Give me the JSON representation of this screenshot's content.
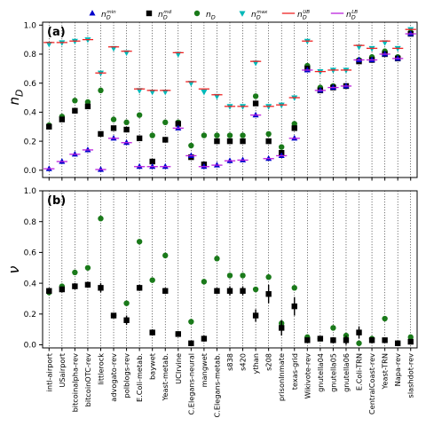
{
  "legend": [
    {
      "key": "nmin",
      "label": "n_D^min",
      "marker": "triangle-up",
      "color": "#0000cc"
    },
    {
      "key": "nmd",
      "label": "n_D^md",
      "marker": "square",
      "color": "#000000"
    },
    {
      "key": "nD",
      "label": "n_D",
      "marker": "circle",
      "color": "#1a7a1a"
    },
    {
      "key": "nmax",
      "label": "n_D^max",
      "marker": "triangle-down",
      "color": "#00b8b8"
    },
    {
      "key": "nUB",
      "label": "n_D^UB",
      "marker": "hline",
      "color": "#ee2222"
    },
    {
      "key": "nLB",
      "label": "n_D^LB",
      "marker": "hline",
      "color": "#bb22dd"
    }
  ],
  "chart_data": [
    {
      "type": "scatter",
      "panel": "(a)",
      "ylabel": "n_D",
      "ylim": [
        -0.05,
        1.02
      ],
      "yticks": [
        "0.0",
        "0.2",
        "0.4",
        "0.6",
        "0.8",
        "1.0"
      ],
      "categories": [
        "intl-airport",
        "USairport",
        "bitcoinalpha-rev",
        "bitcoinOTC-rev",
        "littlerock",
        "advogato-rev",
        "polblogs-rev",
        "E.Coli-metab.",
        "baywet",
        "Yeast-metab.",
        "UCIrvine",
        "C.Elegans-neural",
        "mangwet",
        "C.Elegans-metab.",
        "s838",
        "s420",
        "ythan",
        "s208",
        "prisonInmate",
        "texas-grid",
        "Wikivote-rev",
        "gnutella04",
        "gnutella05",
        "gnutella06",
        "E.Coli-TRN",
        "CentralCoast-rev",
        "Yeast-TRN",
        "Napa-rev",
        "slashdot-rev"
      ],
      "series": [
        {
          "name": "n_D^min",
          "values": [
            0.01,
            0.06,
            0.11,
            0.14,
            0.005,
            0.22,
            0.19,
            0.025,
            0.025,
            0.025,
            0.29,
            0.1,
            0.025,
            0.035,
            0.065,
            0.07,
            0.38,
            0.08,
            0.1,
            0.22,
            0.69,
            0.55,
            0.57,
            0.58,
            0.76,
            0.76,
            0.8,
            0.77,
            0.94
          ]
        },
        {
          "name": "n_D^md",
          "values": [
            0.3,
            0.35,
            0.41,
            0.44,
            0.25,
            0.29,
            0.28,
            0.22,
            0.06,
            0.21,
            0.32,
            0.09,
            0.04,
            0.2,
            0.2,
            0.2,
            0.46,
            0.2,
            0.12,
            0.29,
            0.7,
            0.55,
            0.57,
            0.58,
            0.75,
            0.76,
            0.8,
            0.77,
            0.94
          ]
        },
        {
          "name": "n_D",
          "values": [
            0.31,
            0.37,
            0.48,
            0.47,
            0.55,
            0.35,
            0.33,
            0.38,
            0.24,
            0.33,
            0.33,
            0.17,
            0.24,
            0.24,
            0.24,
            0.24,
            0.51,
            0.25,
            0.16,
            0.32,
            0.72,
            0.57,
            0.58,
            0.58,
            0.76,
            0.78,
            0.82,
            0.78,
            0.95
          ]
        },
        {
          "name": "n_D^max",
          "values": [
            0.87,
            0.88,
            0.89,
            0.9,
            0.67,
            0.84,
            0.81,
            0.55,
            0.54,
            0.54,
            0.8,
            0.6,
            0.54,
            0.51,
            0.44,
            0.44,
            0.74,
            0.44,
            0.45,
            0.5,
            0.89,
            0.68,
            0.69,
            0.69,
            0.85,
            0.84,
            0.88,
            0.84,
            0.97
          ]
        },
        {
          "name": "n_D^UB",
          "values": [
            0.88,
            0.88,
            0.89,
            0.9,
            0.67,
            0.85,
            0.82,
            0.56,
            0.55,
            0.55,
            0.81,
            0.61,
            0.56,
            0.52,
            0.44,
            0.44,
            0.75,
            0.44,
            0.45,
            0.5,
            0.89,
            0.68,
            0.69,
            0.69,
            0.86,
            0.84,
            0.89,
            0.84,
            0.97
          ]
        },
        {
          "name": "n_D^LB",
          "values": [
            0.01,
            0.06,
            0.11,
            0.14,
            0.005,
            0.22,
            0.19,
            0.025,
            0.025,
            0.025,
            0.29,
            0.1,
            0.025,
            0.035,
            0.065,
            0.07,
            0.38,
            0.08,
            0.1,
            0.22,
            0.69,
            0.55,
            0.57,
            0.58,
            0.76,
            0.76,
            0.8,
            0.77,
            0.94
          ]
        }
      ]
    },
    {
      "type": "scatter",
      "panel": "(b)",
      "ylabel": "ν",
      "ylim": [
        -0.02,
        1.0
      ],
      "yticks": [
        "0.0",
        "0.2",
        "0.4",
        "0.6",
        "0.8",
        "1.0"
      ],
      "categories": [
        "intl-airport",
        "USairport",
        "bitcoinalpha-rev",
        "bitcoinOTC-rev",
        "littlerock",
        "advogato-rev",
        "polblogs-rev",
        "E.Coli-metab.",
        "baywet",
        "Yeast-metab.",
        "UCIrvine",
        "C.Elegans-neural",
        "mangwet",
        "C.Elegans-metab.",
        "s838",
        "s420",
        "ythan",
        "s208",
        "prisonInmate",
        "texas-grid",
        "Wikivote-rev",
        "gnutella04",
        "gnutella05",
        "gnutella06",
        "E.Coli-TRN",
        "CentralCoast-rev",
        "Yeast-TRN",
        "Napa-rev",
        "slashdot-rev"
      ],
      "series": [
        {
          "name": "green",
          "values": [
            0.34,
            0.38,
            0.47,
            0.5,
            0.82,
            0.19,
            0.27,
            0.67,
            0.42,
            0.58,
            0.07,
            0.15,
            0.41,
            0.56,
            0.45,
            0.45,
            0.36,
            0.44,
            0.14,
            0.37,
            0.05,
            0.04,
            0.11,
            0.06,
            0.01,
            0.04,
            0.17,
            0.01,
            0.05
          ]
        },
        {
          "name": "black",
          "values": [
            0.35,
            0.36,
            0.38,
            0.39,
            0.37,
            0.19,
            0.16,
            0.37,
            0.08,
            0.35,
            0.07,
            0.01,
            0.04,
            0.35,
            0.35,
            0.35,
            0.19,
            0.33,
            0.11,
            0.25,
            0.03,
            0.04,
            0.03,
            0.03,
            0.08,
            0.03,
            0.03,
            0.01,
            0.02
          ]
        }
      ],
      "errors": [
        0.02,
        0.02,
        0.02,
        0.02,
        0.03,
        0.015,
        0.03,
        0.02,
        0.02,
        0.02,
        0.01,
        0.01,
        0.02,
        0.02,
        0.03,
        0.03,
        0.04,
        0.06,
        0.05,
        0.06,
        0.015,
        0.01,
        0.02,
        0.03,
        0.04,
        0.02,
        0.015,
        0.01,
        0.01
      ]
    }
  ]
}
